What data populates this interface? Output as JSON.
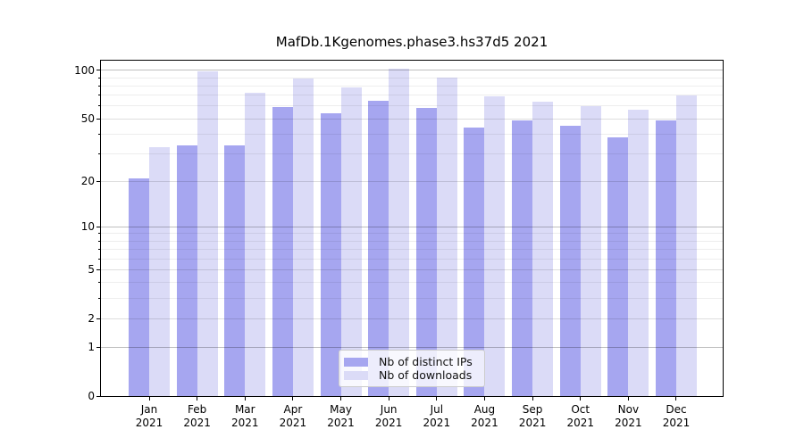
{
  "title": "MafDb.1Kgenomes.phase3.hs37d5 2021",
  "chart_data": {
    "type": "bar",
    "title": "MafDb.1Kgenomes.phase3.hs37d5 2021",
    "categories": [
      "Jan",
      "Feb",
      "Mar",
      "Apr",
      "May",
      "Jun",
      "Jul",
      "Aug",
      "Sep",
      "Oct",
      "Nov",
      "Dec"
    ],
    "category_year": "2021",
    "series": [
      {
        "name": "Nb of distinct IPs",
        "color": "#a6a6f0",
        "values": [
          21,
          34,
          34,
          59,
          54,
          65,
          58,
          44,
          49,
          45,
          38,
          49
        ]
      },
      {
        "name": "Nb of downloads",
        "color": "#dbdbf7",
        "values": [
          33,
          99,
          73,
          89,
          78,
          102,
          90,
          69,
          64,
          60,
          57,
          70
        ]
      }
    ],
    "yscale": "log1p",
    "ylim": [
      0,
      115
    ],
    "yticks": [
      0,
      1,
      2,
      5,
      10,
      20,
      50,
      100
    ],
    "yticks_decade": [
      1,
      10,
      100
    ],
    "yticks_minor": [
      3,
      4,
      6,
      7,
      8,
      9,
      30,
      40,
      60,
      70,
      80,
      90
    ],
    "grid": true,
    "legend_position": "lower center"
  },
  "legend": {
    "items": [
      "Nb of distinct IPs",
      "Nb of downloads"
    ]
  },
  "colors": {
    "background": "#ffffff",
    "spine": "#000000",
    "text": "#000000",
    "grid_decade": "rgba(0,0,0,0.25)",
    "grid_major": "rgba(0,0,0,0.13)",
    "grid_minor": "rgba(0,0,0,0.07)",
    "legend_border": "#cccccc",
    "legend_background": "rgba(255,255,255,0.8)",
    "series_distinct_ips": "#a6a6f0",
    "series_downloads": "#dbdbf7"
  }
}
